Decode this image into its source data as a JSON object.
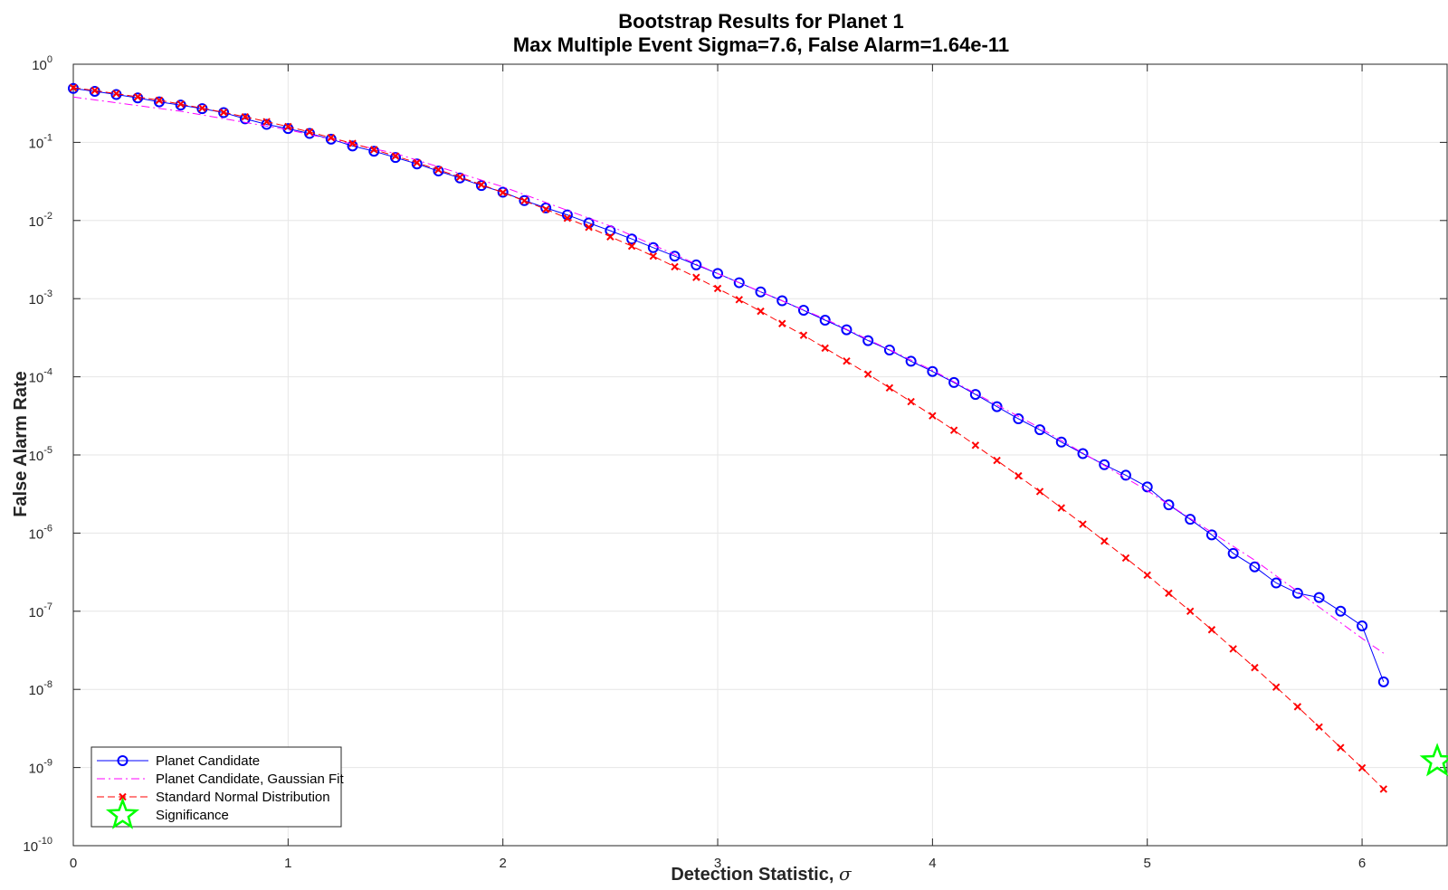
{
  "chart_data": {
    "type": "line",
    "title": "Bootstrap Results for Planet 1",
    "subtitle": "Max Multiple Event Sigma=7.6, False Alarm=1.64e-11",
    "xlabel": "Detection Statistic, ",
    "xlabel_symbol": "σ",
    "ylabel": "False Alarm Rate",
    "xlim": [
      0,
      6.4
    ],
    "ylim": [
      1e-10,
      1
    ],
    "yscale": "log",
    "grid": true,
    "legend_position": "bottom-left",
    "x_ticks": [
      0,
      1,
      2,
      3,
      4,
      5,
      6
    ],
    "x_tick_labels": [
      "0",
      "1",
      "2",
      "3",
      "4",
      "5",
      "6"
    ],
    "y_ticks": [
      {
        "value": 1,
        "base": "10",
        "exp": "0"
      },
      {
        "value": 0.1,
        "base": "10",
        "exp": "-1"
      },
      {
        "value": 0.01,
        "base": "10",
        "exp": "-2"
      },
      {
        "value": 0.001,
        "base": "10",
        "exp": "-3"
      },
      {
        "value": 0.0001,
        "base": "10",
        "exp": "-4"
      },
      {
        "value": 1e-05,
        "base": "10",
        "exp": "-5"
      },
      {
        "value": 1e-06,
        "base": "10",
        "exp": "-6"
      },
      {
        "value": 1e-07,
        "base": "10",
        "exp": "-7"
      },
      {
        "value": 1e-08,
        "base": "10",
        "exp": "-8"
      },
      {
        "value": 1e-09,
        "base": "10",
        "exp": "-9"
      },
      {
        "value": 1e-10,
        "base": "10",
        "exp": "-10"
      }
    ],
    "series": [
      {
        "name": "Planet Candidate",
        "color": "#0000ff",
        "marker": "circle",
        "line": "solid",
        "x": [
          0,
          0.1,
          0.2,
          0.3,
          0.4,
          0.5,
          0.6,
          0.7,
          0.8,
          0.9,
          1.0,
          1.1,
          1.2,
          1.3,
          1.4,
          1.5,
          1.6,
          1.7,
          1.8,
          1.9,
          2.0,
          2.1,
          2.2,
          2.3,
          2.4,
          2.5,
          2.6,
          2.7,
          2.8,
          2.9,
          3.0,
          3.1,
          3.2,
          3.3,
          3.4,
          3.5,
          3.6,
          3.7,
          3.8,
          3.9,
          4.0,
          4.1,
          4.2,
          4.3,
          4.4,
          4.5,
          4.6,
          4.7,
          4.8,
          4.9,
          5.0,
          5.1,
          5.2,
          5.3,
          5.4,
          5.5,
          5.6,
          5.7,
          5.8,
          5.9,
          6.0,
          6.1
        ],
        "y": [
          0.49,
          0.45,
          0.41,
          0.37,
          0.33,
          0.3,
          0.27,
          0.24,
          0.2,
          0.17,
          0.15,
          0.13,
          0.11,
          0.09,
          0.077,
          0.064,
          0.053,
          0.043,
          0.035,
          0.028,
          0.023,
          0.018,
          0.0145,
          0.0118,
          0.0093,
          0.0074,
          0.0058,
          0.0045,
          0.0035,
          0.0027,
          0.0021,
          0.0016,
          0.00122,
          0.00094,
          0.00071,
          0.00053,
          0.0004,
          0.00029,
          0.00022,
          0.000158,
          0.000117,
          8.45e-05,
          5.95e-05,
          4.15e-05,
          2.9e-05,
          2.1e-05,
          1.46e-05,
          1.04e-05,
          7.5e-06,
          5.5e-06,
          3.9e-06,
          2.3e-06,
          1.5e-06,
          9.5e-07,
          5.5e-07,
          3.7e-07,
          2.3e-07,
          1.7e-07,
          1.5e-07,
          1e-07,
          6.5e-08,
          1.25e-08
        ]
      },
      {
        "name": "Planet Candidate, Gaussian Fit",
        "color": "#ff00ff",
        "marker": "none",
        "line": "dashdot",
        "x": [
          0,
          0.5,
          1.0,
          1.5,
          2.0,
          2.5,
          3.0,
          3.5,
          4.0,
          4.5,
          5.0,
          5.5,
          6.0,
          6.1
        ],
        "y": [
          0.38,
          0.25,
          0.145,
          0.072,
          0.027,
          0.0085,
          0.0021,
          0.00055,
          0.000121,
          2.22e-05,
          3.5e-06,
          4.5e-07,
          4.5e-08,
          2.9e-08
        ]
      },
      {
        "name": "Standard Normal Distribution",
        "color": "#ff0000",
        "marker": "x",
        "line": "dashed",
        "x": [
          0,
          0.1,
          0.2,
          0.3,
          0.4,
          0.5,
          0.6,
          0.7,
          0.8,
          0.9,
          1.0,
          1.1,
          1.2,
          1.3,
          1.4,
          1.5,
          1.6,
          1.7,
          1.8,
          1.9,
          2.0,
          2.1,
          2.2,
          2.3,
          2.4,
          2.5,
          2.6,
          2.7,
          2.8,
          2.9,
          3.0,
          3.1,
          3.2,
          3.3,
          3.4,
          3.5,
          3.6,
          3.7,
          3.8,
          3.9,
          4.0,
          4.1,
          4.2,
          4.3,
          4.4,
          4.5,
          4.6,
          4.7,
          4.8,
          4.9,
          5.0,
          5.1,
          5.2,
          5.3,
          5.4,
          5.5,
          5.6,
          5.7,
          5.8,
          5.9,
          6.0,
          6.1
        ],
        "y": [
          0.5,
          0.46,
          0.42,
          0.382,
          0.345,
          0.309,
          0.274,
          0.242,
          0.212,
          0.184,
          0.159,
          0.136,
          0.115,
          0.0968,
          0.0808,
          0.0668,
          0.0548,
          0.0446,
          0.0359,
          0.0287,
          0.0228,
          0.0179,
          0.0139,
          0.0107,
          0.0082,
          0.0062,
          0.0047,
          0.0035,
          0.00256,
          0.00187,
          0.00135,
          0.00097,
          0.00069,
          0.00048,
          0.00034,
          0.000233,
          0.000159,
          0.000108,
          7.23e-05,
          4.81e-05,
          3.17e-05,
          2.07e-05,
          1.33e-05,
          8.5e-06,
          5.4e-06,
          3.4e-06,
          2.1e-06,
          1.3e-06,
          7.9e-07,
          4.8e-07,
          2.9e-07,
          1.7e-07,
          1e-07,
          5.8e-08,
          3.3e-08,
          1.9e-08,
          1.07e-08,
          6e-09,
          3.3e-09,
          1.8e-09,
          9.9e-10,
          5.3e-10
        ]
      },
      {
        "name": "Significance",
        "color": "#00ff00",
        "marker": "star",
        "line": "none",
        "x": [
          6.35
        ],
        "y": [
          1.2e-09
        ]
      }
    ]
  }
}
